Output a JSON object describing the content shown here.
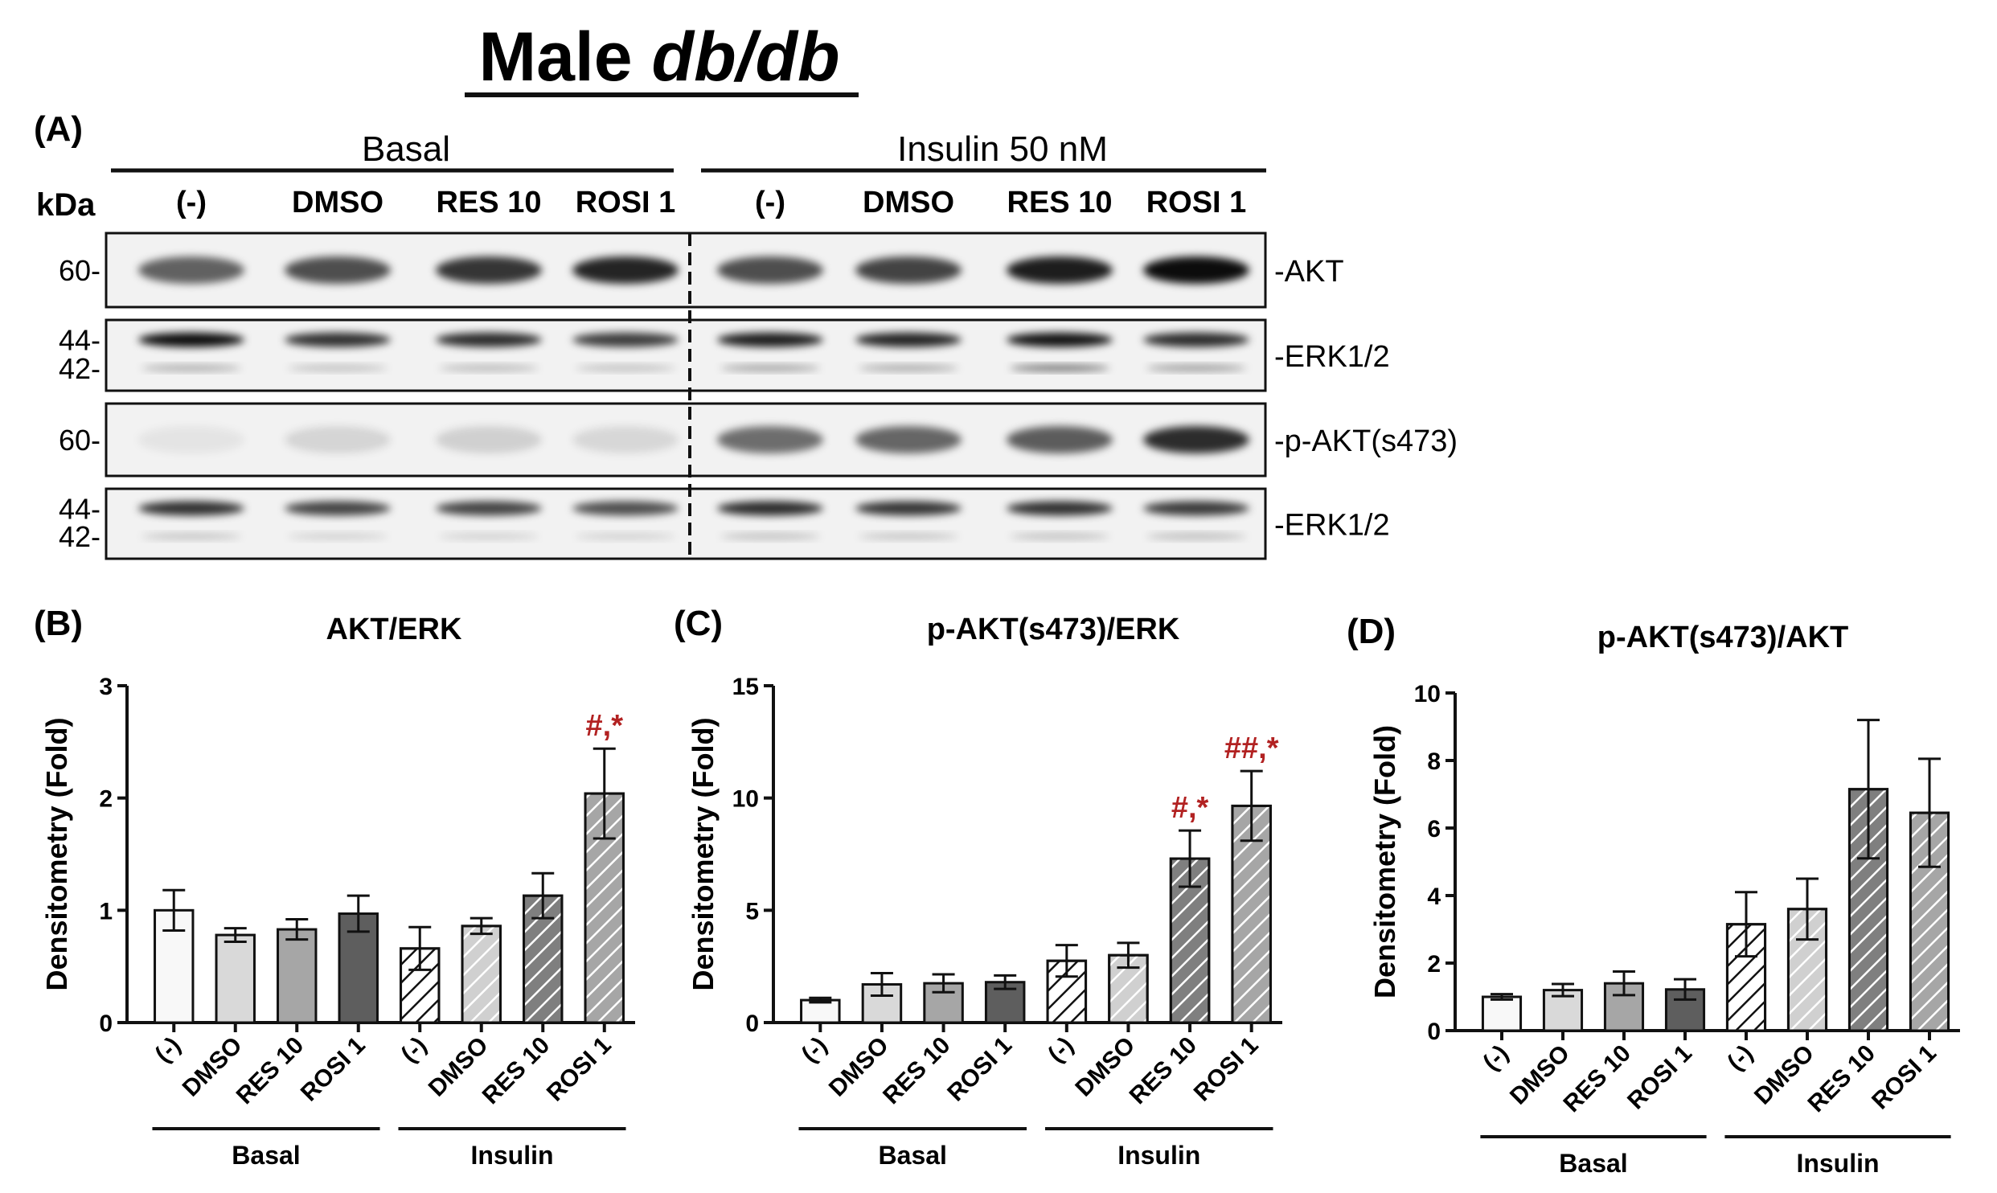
{
  "figure": {
    "title_prefix": "Male ",
    "title_italic": "db/db",
    "blot": {
      "panel_label": "(A)",
      "kda_label": "kDa",
      "group_basal": "Basal",
      "group_insulin": "Insulin 50 nM",
      "lanes": [
        "(-)",
        "DMSO",
        "RES 10",
        "ROSI 1",
        "(-)",
        "DMSO",
        "RES 10",
        "ROSI 1"
      ],
      "rows": [
        {
          "label": "-AKT",
          "markers": [
            "60-"
          ],
          "bands": [
            0.6,
            0.68,
            0.78,
            0.85,
            0.68,
            0.72,
            0.88,
            0.95
          ],
          "minor_bands": []
        },
        {
          "label": "-ERK1/2",
          "markers": [
            "44-",
            "42-"
          ],
          "bands": [
            0.95,
            0.8,
            0.82,
            0.75,
            0.88,
            0.85,
            0.92,
            0.82
          ],
          "minor_bands": [
            0.3,
            0.22,
            0.25,
            0.22,
            0.35,
            0.32,
            0.55,
            0.38
          ]
        },
        {
          "label": "-p-AKT(s473)",
          "markers": [
            "60-"
          ],
          "bands": [
            0.06,
            0.12,
            0.14,
            0.11,
            0.55,
            0.58,
            0.62,
            0.82
          ],
          "minor_bands": []
        },
        {
          "label": "-ERK1/2",
          "markers": [
            "44-",
            "42-"
          ],
          "bands": [
            0.8,
            0.72,
            0.72,
            0.68,
            0.82,
            0.78,
            0.8,
            0.76
          ],
          "minor_bands": [
            0.2,
            0.15,
            0.15,
            0.15,
            0.22,
            0.2,
            0.22,
            0.24
          ]
        }
      ]
    }
  },
  "chart_data": [
    {
      "panel": "(B)",
      "type": "bar",
      "title": "AKT/ERK",
      "ylabel": "Densitometry (Fold)",
      "ylim": [
        0,
        3
      ],
      "yticks": [
        "0",
        "1",
        "2",
        "3"
      ],
      "categories": [
        "(-)",
        "DMSO",
        "RES 10",
        "ROSI 1",
        "(-)",
        "DMSO",
        "RES 10",
        "ROSI 1"
      ],
      "values": [
        1.0,
        0.78,
        0.83,
        0.97,
        0.66,
        0.86,
        1.13,
        2.04
      ],
      "errors": [
        0.18,
        0.06,
        0.09,
        0.16,
        0.19,
        0.07,
        0.2,
        0.4
      ],
      "annotations": [
        "",
        "",
        "",
        "",
        "",
        "",
        "",
        "#,*"
      ],
      "groups": [
        "Basal",
        "Insulin"
      ]
    },
    {
      "panel": "(C)",
      "type": "bar",
      "title": "p-AKT(s473)/ERK",
      "ylabel": "Densitometry (Fold)",
      "ylim": [
        0,
        15
      ],
      "yticks": [
        "0",
        "5",
        "10",
        "15"
      ],
      "categories": [
        "(-)",
        "DMSO",
        "RES 10",
        "ROSI 1",
        "(-)",
        "DMSO",
        "RES 10",
        "ROSI 1"
      ],
      "values": [
        1.0,
        1.7,
        1.75,
        1.8,
        2.75,
        3.0,
        7.3,
        9.65
      ],
      "errors": [
        0.1,
        0.5,
        0.4,
        0.3,
        0.7,
        0.55,
        1.25,
        1.55
      ],
      "annotations": [
        "",
        "",
        "",
        "",
        "",
        "",
        "#,*",
        "##,*"
      ],
      "groups": [
        "Basal",
        "Insulin"
      ]
    },
    {
      "panel": "(D)",
      "type": "bar",
      "title": "p-AKT(s473)/AKT",
      "ylabel": "Densitometry (Fold)",
      "ylim": [
        0,
        10
      ],
      "yticks": [
        "0",
        "2",
        "4",
        "6",
        "8",
        "10"
      ],
      "categories": [
        "(-)",
        "DMSO",
        "RES 10",
        "ROSI 1",
        "(-)",
        "DMSO",
        "RES 10",
        "ROSI 1"
      ],
      "values": [
        1.0,
        1.2,
        1.4,
        1.22,
        3.15,
        3.6,
        7.15,
        6.45
      ],
      "errors": [
        0.08,
        0.18,
        0.35,
        0.3,
        0.95,
        0.9,
        2.05,
        1.6
      ],
      "annotations": [
        "",
        "",
        "",
        "",
        "",
        "",
        "",
        ""
      ],
      "groups": [
        "Basal",
        "Insulin"
      ]
    }
  ],
  "colors": {
    "bars": [
      "#f8f8f8",
      "#d9d9d9",
      "#a6a6a6",
      "#5e5e5e",
      "#ffffff",
      "#d0d0d0",
      "#7f7f7f",
      "#a6a6a6"
    ],
    "hatched": [
      false,
      false,
      false,
      false,
      true,
      true,
      true,
      true
    ],
    "annotation": "#b22222",
    "axis": "#111111"
  }
}
